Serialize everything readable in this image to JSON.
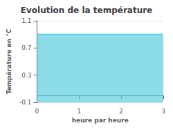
{
  "chart_data": {
    "type": "area",
    "title": "Evolution de la température",
    "xlabel": "heure par heure",
    "ylabel": "Température en °C",
    "x": [
      0,
      3
    ],
    "values": [
      0.9,
      0.9
    ],
    "color": "#5BCFDF",
    "xlim": [
      0,
      3
    ],
    "ylim": [
      -0.1,
      1.1
    ],
    "xticks": [
      0,
      1,
      2,
      3
    ],
    "yticks": [
      -0.1,
      0.3,
      0.7,
      1.1
    ],
    "grid": "y"
  }
}
